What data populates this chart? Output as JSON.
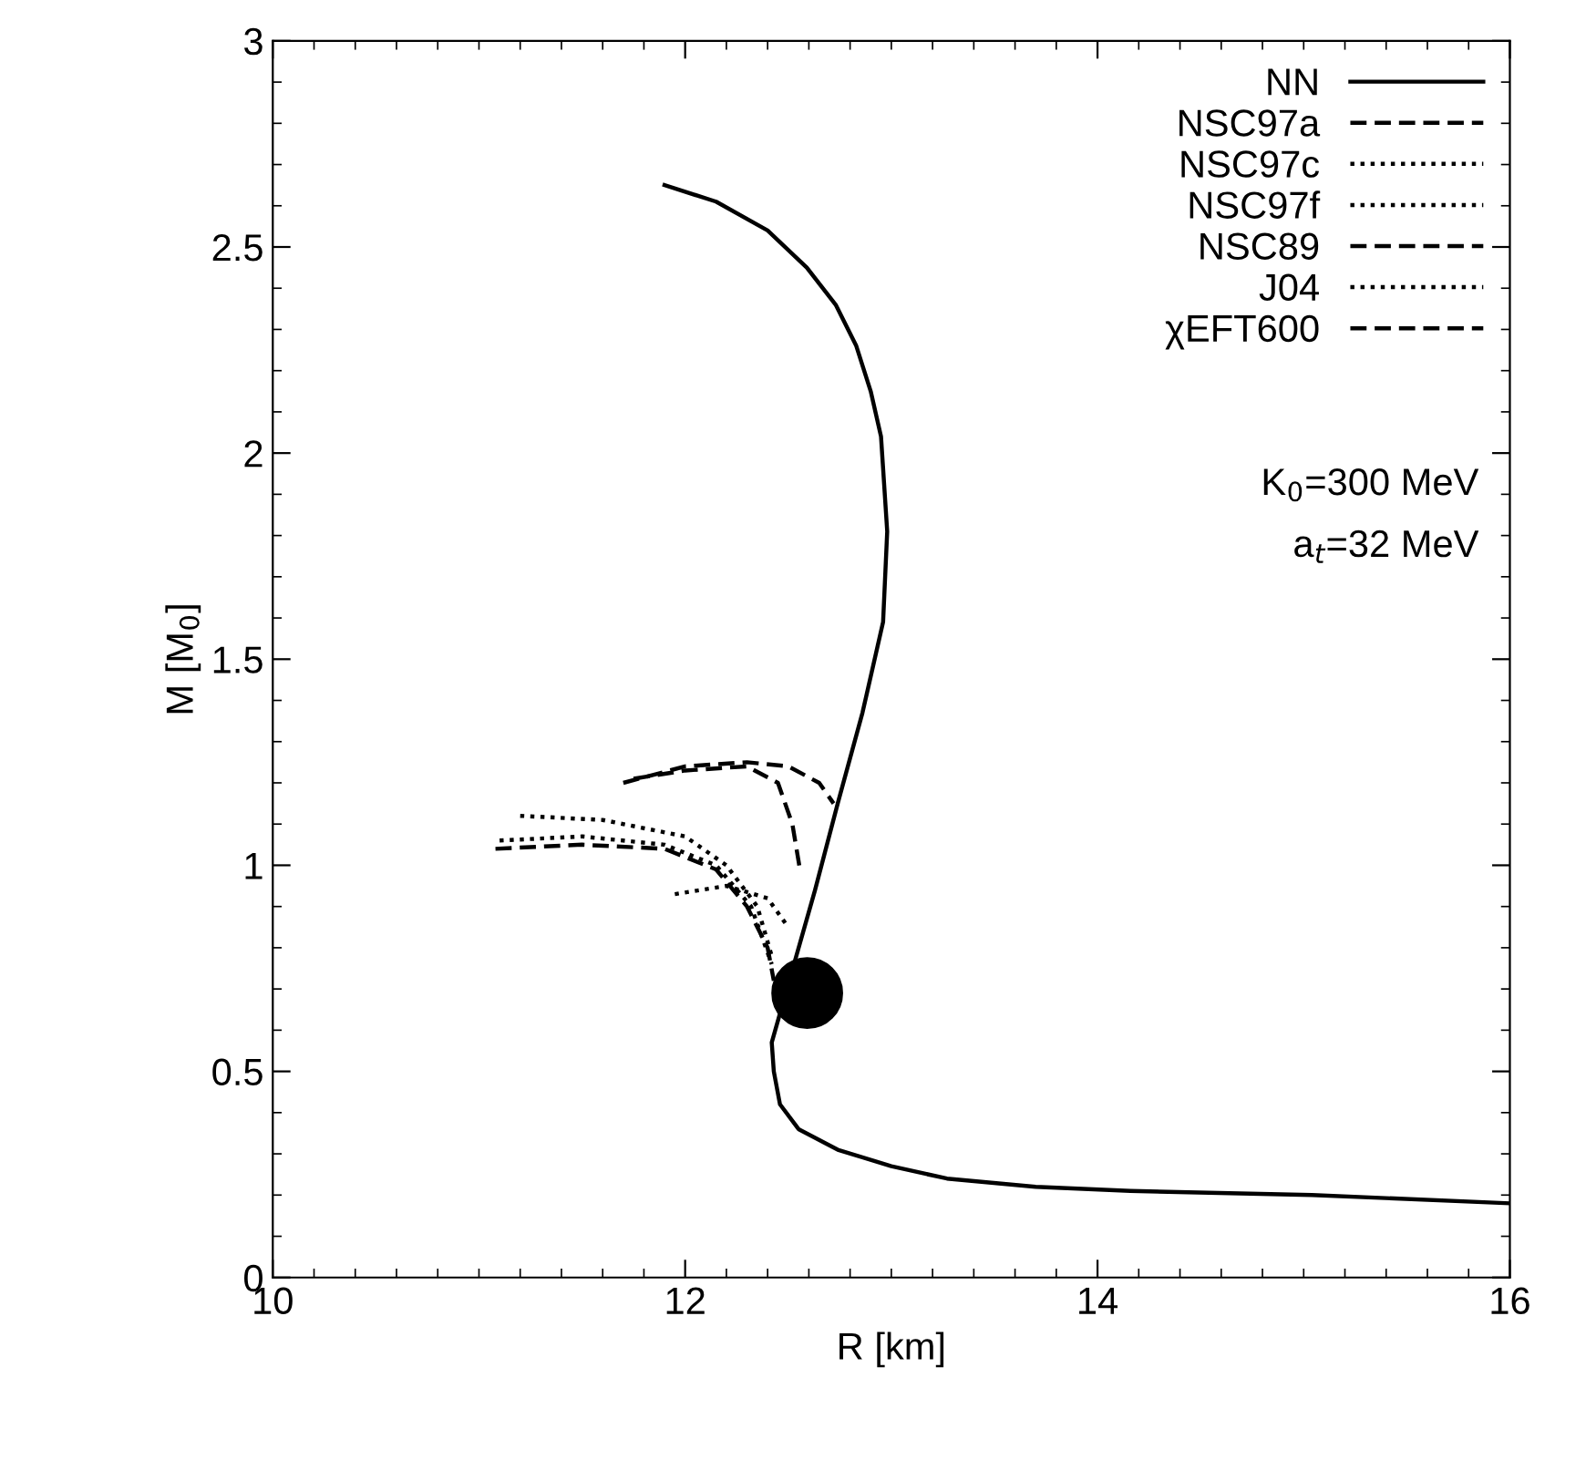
{
  "chart_data": {
    "type": "line",
    "xlabel": "R [km]",
    "ylabel": "M [M$_{0}$]",
    "xlim": [
      10,
      16
    ],
    "xticks": [
      10,
      12,
      14,
      16
    ],
    "ylim": [
      0,
      3
    ],
    "yticks": [
      0,
      0.5,
      1,
      1.5,
      2,
      2.5,
      3
    ],
    "grid": false,
    "legend": "top right",
    "marker": "none",
    "annotations": [
      "K$_{0}$=300 MeV",
      "a$_{t}$=32 MeV"
    ],
    "series": [
      {
        "name": "NN",
        "color": "#000000",
        "line_style": "solid",
        "x": [
          11.9,
          12.15,
          12.4,
          12.59,
          12.73,
          12.83,
          12.9,
          12.95,
          12.98,
          12.96,
          12.86,
          12.74,
          12.63,
          12.42,
          12.43,
          12.46,
          12.55,
          12.74,
          13.0,
          13.27,
          13.7,
          14.16,
          15.04,
          16.0
        ],
        "values": [
          2.65,
          2.61,
          2.54,
          2.45,
          2.36,
          2.26,
          2.15,
          2.04,
          1.81,
          1.59,
          1.37,
          1.15,
          0.94,
          0.57,
          0.5,
          0.42,
          0.36,
          0.31,
          0.27,
          0.24,
          0.22,
          0.21,
          0.2,
          0.18
        ]
      },
      {
        "name": "NSC97a",
        "color": "#000000",
        "line_style": "dashed",
        "x": [
          11.08,
          11.5,
          11.9,
          12.15,
          12.3,
          12.4,
          12.43
        ],
        "values": [
          1.04,
          1.05,
          1.04,
          0.99,
          0.9,
          0.8,
          0.72
        ]
      },
      {
        "name": "NSC97c",
        "color": "#000000",
        "line_style": "dotted",
        "x": [
          11.2,
          11.6,
          12.0,
          12.2,
          12.35,
          12.42
        ],
        "values": [
          1.12,
          1.11,
          1.07,
          1.0,
          0.9,
          0.78
        ]
      },
      {
        "name": "NSC97f",
        "color": "#000000",
        "line_style": "dotted",
        "x": [
          11.1,
          11.5,
          11.9,
          12.15,
          12.32,
          12.42
        ],
        "values": [
          1.06,
          1.07,
          1.05,
          1.0,
          0.9,
          0.76
        ]
      },
      {
        "name": "NSC89",
        "color": "#000000",
        "line_style": "dashed",
        "x": [
          11.75,
          12.0,
          12.3,
          12.45,
          12.52,
          12.56
        ],
        "values": [
          1.21,
          1.23,
          1.24,
          1.2,
          1.1,
          0.98
        ]
      },
      {
        "name": "J04",
        "color": "#000000",
        "line_style": "dotted",
        "x": [
          11.95,
          12.2,
          12.4,
          12.5
        ],
        "values": [
          0.93,
          0.95,
          0.92,
          0.85
        ]
      },
      {
        "name": "χEFT600",
        "color": "#000000",
        "line_style": "dashed",
        "x": [
          11.7,
          12.0,
          12.3,
          12.5,
          12.65,
          12.72
        ],
        "values": [
          1.2,
          1.24,
          1.25,
          1.24,
          1.2,
          1.15
        ]
      }
    ]
  }
}
